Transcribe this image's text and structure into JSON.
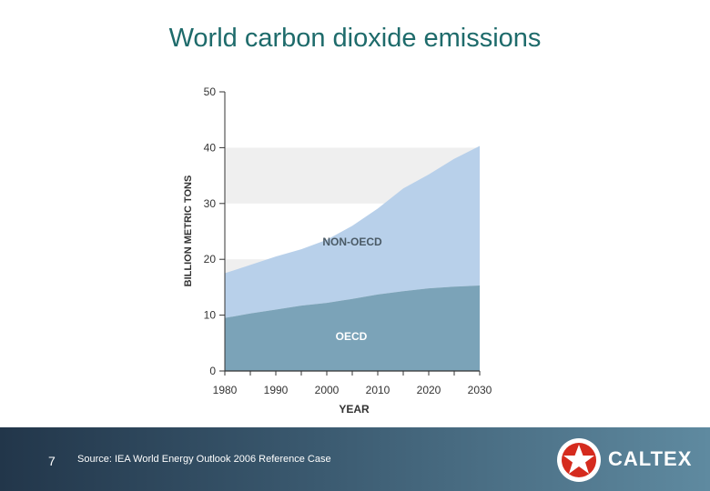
{
  "title": "World carbon dioxide emissions",
  "footer": {
    "page_number": "7",
    "source": "Source: IEA World Energy Outlook 2006 Reference Case",
    "brand": "CALTEX"
  },
  "colors": {
    "title": "#1e6b6b",
    "non_oecd": "#b8d0ea",
    "oecd": "#7ba3b8",
    "band": "#efefef",
    "footer": "#3b5a70"
  },
  "icons": {
    "logo": "caltex-star-logo-icon"
  },
  "chart_data": {
    "type": "area",
    "stacked": true,
    "xlabel": "YEAR",
    "ylabel": "BILLION METRIC TONS",
    "xlim": [
      1980,
      2030
    ],
    "ylim": [
      0,
      50
    ],
    "x_ticks": [
      1980,
      1990,
      2000,
      2010,
      2020,
      2030
    ],
    "y_ticks": [
      0,
      10,
      20,
      30,
      40,
      50
    ],
    "grid": "alternating horizontal bands",
    "x": [
      1980,
      1985,
      1990,
      1995,
      2000,
      2005,
      2010,
      2015,
      2020,
      2025,
      2030
    ],
    "series": [
      {
        "name": "OECD",
        "values": [
          9.5,
          10.3,
          11.0,
          11.7,
          12.2,
          12.9,
          13.7,
          14.3,
          14.8,
          15.1,
          15.3
        ]
      },
      {
        "name": "NON-OECD",
        "values": [
          8.0,
          8.7,
          9.5,
          10.1,
          11.3,
          13.1,
          15.4,
          18.4,
          20.4,
          22.9,
          25.0
        ]
      }
    ]
  }
}
